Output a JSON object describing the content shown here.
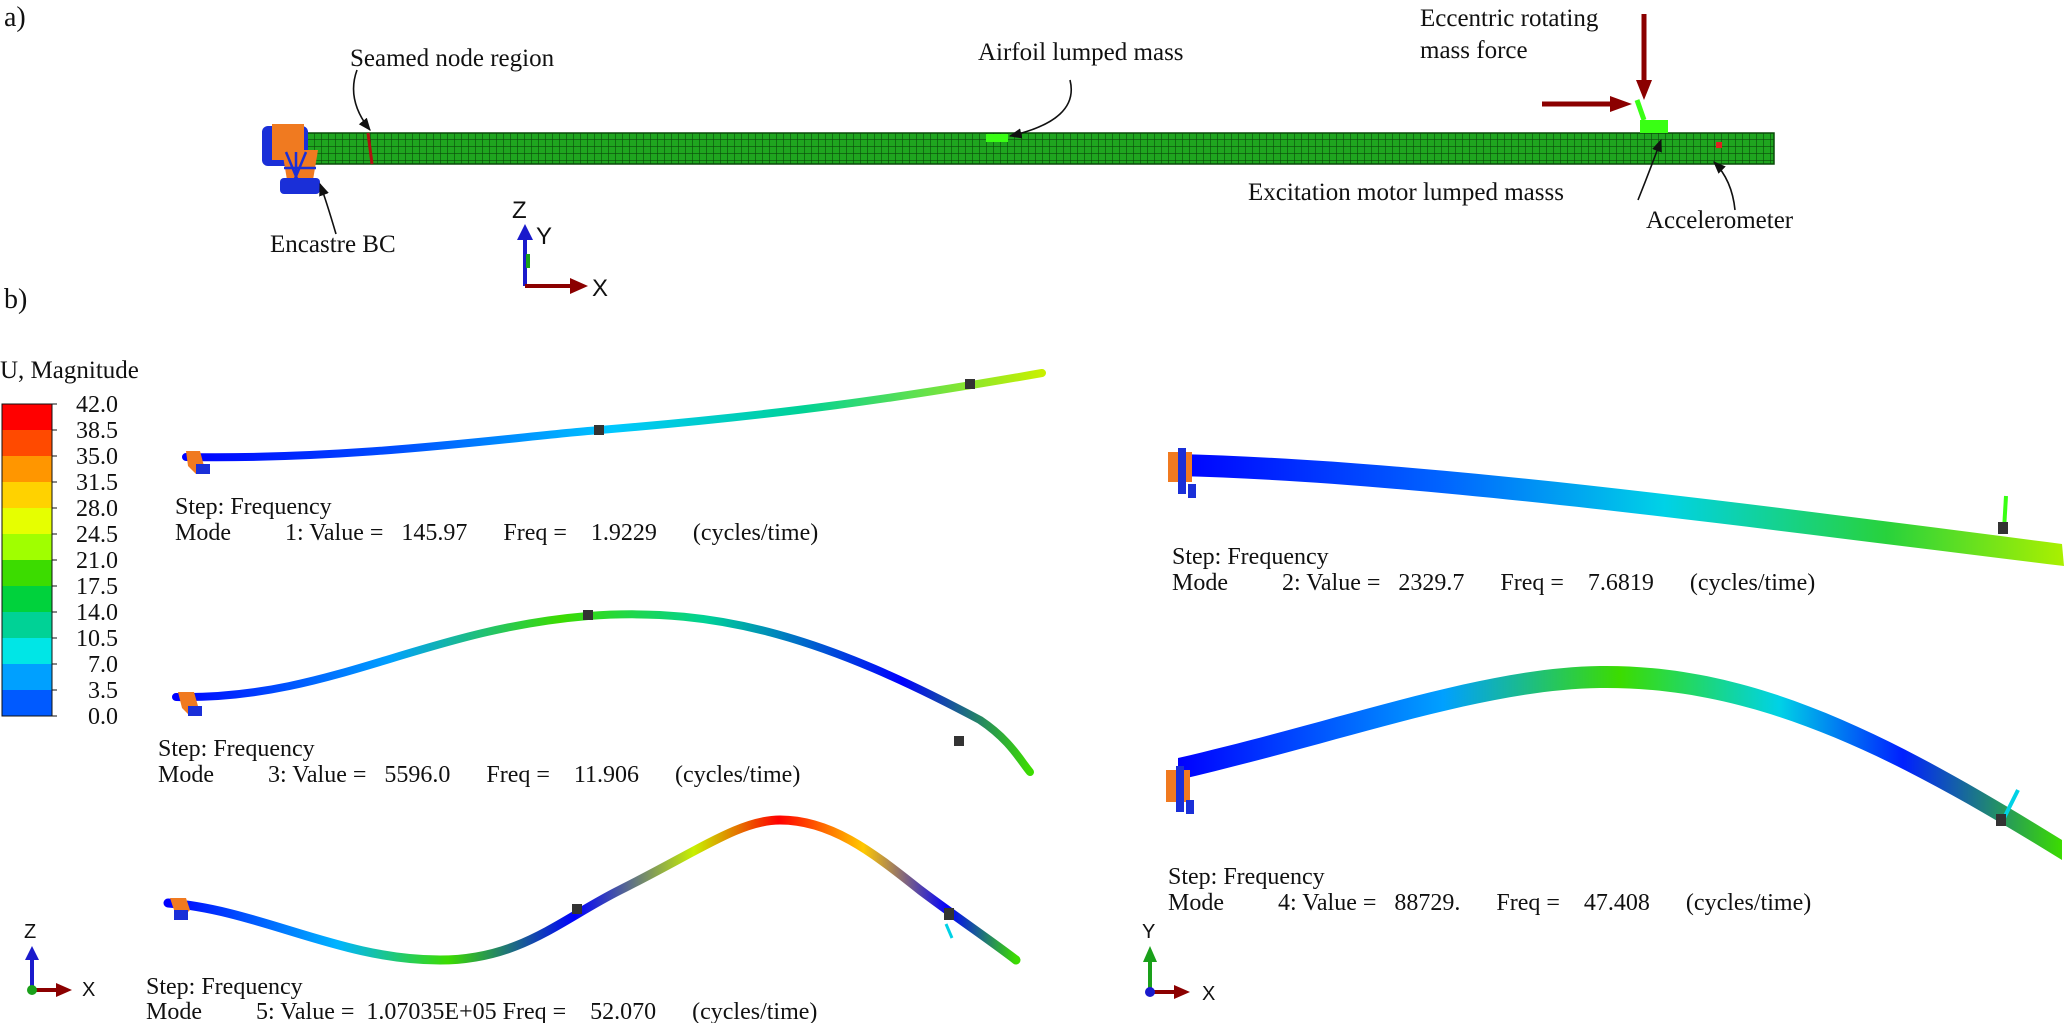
{
  "panels": {
    "a": "a)",
    "b": "b)"
  },
  "panel_a": {
    "labels": {
      "seamed": "Seamed node region",
      "airfoil": "Airfoil lumped mass",
      "eccentric_line1": "Eccentric rotating",
      "eccentric_line2": "mass force",
      "encastre": "Encastre BC",
      "motor": "Excitation motor lumped masss",
      "accelerometer": "Accelerometer"
    },
    "triad": {
      "z": "Z",
      "y": "Y",
      "x": "X"
    }
  },
  "legend": {
    "title": "U, Magnitude",
    "ticks": [
      "42.0",
      "38.5",
      "35.0",
      "31.5",
      "28.0",
      "24.5",
      "21.0",
      "17.5",
      "14.0",
      "10.5",
      "7.0",
      "3.5",
      "0.0"
    ],
    "colors": [
      "#ff0000",
      "#ff4a00",
      "#ff9600",
      "#ffd200",
      "#e6ff00",
      "#a0ff00",
      "#3cdc00",
      "#00d23c",
      "#00d296",
      "#00e6e6",
      "#00a0ff",
      "#005aff",
      "#0000ff"
    ]
  },
  "modes": [
    {
      "step": "Step: Frequency",
      "line": "Mode         1: Value =   145.97      Freq =    1.9229      (cycles/time)"
    },
    {
      "step": "Step: Frequency",
      "line": "Mode         2: Value =   2329.7      Freq =    7.6819      (cycles/time)"
    },
    {
      "step": "Step: Frequency",
      "line": "Mode         3: Value =   5596.0      Freq =    11.906      (cycles/time)"
    },
    {
      "step": "Step: Frequency",
      "line": "Mode         4: Value =   88729.      Freq =    47.408      (cycles/time)"
    },
    {
      "step": "Step: Frequency",
      "line": "Mode         5: Value =  1.07035E+05 Freq =    52.070      (cycles/time)"
    }
  ],
  "triad_b_left": {
    "z": "Z",
    "x": "X"
  },
  "triad_b_right": {
    "y": "Y",
    "x": "X"
  },
  "colors": {
    "mesh_green": "#1fa51f",
    "mesh_line": "#0a4a0a",
    "arrow_red": "#8b0000",
    "support_orange": "#f07a20",
    "support_blue": "#1a2fd8",
    "axis_blue": "#1a1acc",
    "axis_green": "#1aa01a"
  }
}
